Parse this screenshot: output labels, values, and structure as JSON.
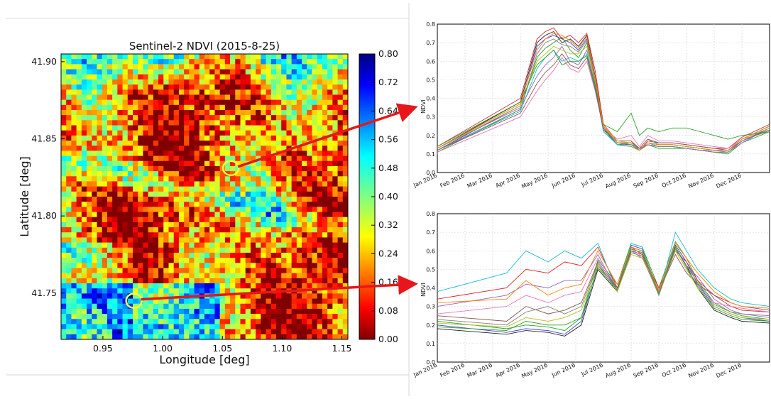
{
  "chart_data": [
    {
      "type": "heatmap",
      "title": "Sentinel-2 NDVI (2015-8-25)",
      "xlabel": "Longitude [deg]",
      "ylabel": "Latitude [deg]",
      "xlim": [
        0.915,
        1.155
      ],
      "ylim": [
        41.72,
        41.905
      ],
      "x_ticks": [
        "0.95",
        "1.00",
        "1.05",
        "1.10",
        "1.15"
      ],
      "x_tick_values": [
        0.95,
        1.0,
        1.05,
        1.1,
        1.15
      ],
      "y_ticks": [
        "41.75",
        "41.80",
        "41.85",
        "41.90"
      ],
      "y_tick_values": [
        41.75,
        41.8,
        41.85,
        41.9
      ],
      "colorbar": {
        "range": [
          0.0,
          0.8
        ],
        "ticks": [
          "0.00",
          "0.08",
          "0.16",
          "0.24",
          "0.32",
          "0.40",
          "0.48",
          "0.56",
          "0.64",
          "0.72",
          "0.80"
        ],
        "tick_values": [
          0.0,
          0.08,
          0.16,
          0.24,
          0.32,
          0.4,
          0.48,
          0.56,
          0.64,
          0.72,
          0.8
        ],
        "colormap": [
          "#800000",
          "#ff0000",
          "#ff8000",
          "#ffff00",
          "#80ff80",
          "#00ffff",
          "#0080ff",
          "#0000ff",
          "#000080"
        ]
      },
      "markers": [
        {
          "lon": 1.057,
          "lat": 41.831
        },
        {
          "lon": 0.976,
          "lat": 41.745
        }
      ]
    },
    {
      "type": "line",
      "xlabel": "",
      "ylabel": "NDVI",
      "ylim": [
        0.0,
        0.8
      ],
      "y_ticks": [
        "0.0",
        "0.1",
        "0.2",
        "0.3",
        "0.4",
        "0.5",
        "0.6",
        "0.7",
        "0.8"
      ],
      "x_ticks": [
        "Jan 2016",
        "Feb 2016",
        "Mar 2016",
        "Apr 2016",
        "May 2016",
        "Jun 2016",
        "Jul 2016",
        "Aug 2016",
        "Sep 2016",
        "Oct 2016",
        "Nov 2016",
        "Dec 2016"
      ],
      "x": [
        0,
        3,
        3.6,
        3.9,
        4.2,
        4.5,
        4.8,
        5.1,
        5.4,
        5.7,
        6.0,
        6.5,
        7.0,
        7.3,
        7.6,
        8.0,
        8.5,
        9.0,
        9.5,
        10.0,
        10.5,
        11.0,
        12.0
      ],
      "series": [
        {
          "values": [
            0.13,
            0.38,
            0.7,
            0.74,
            0.76,
            0.7,
            0.72,
            0.68,
            0.74,
            0.52,
            0.25,
            0.16,
            0.16,
            0.12,
            0.16,
            0.15,
            0.15,
            0.14,
            0.13,
            0.12,
            0.12,
            0.18,
            0.25
          ]
        },
        {
          "values": [
            0.12,
            0.36,
            0.68,
            0.72,
            0.74,
            0.72,
            0.7,
            0.66,
            0.72,
            0.5,
            0.24,
            0.15,
            0.15,
            0.13,
            0.15,
            0.14,
            0.14,
            0.13,
            0.12,
            0.11,
            0.11,
            0.17,
            0.24
          ]
        },
        {
          "values": [
            0.11,
            0.34,
            0.62,
            0.67,
            0.7,
            0.73,
            0.66,
            0.62,
            0.7,
            0.48,
            0.23,
            0.15,
            0.14,
            0.12,
            0.15,
            0.13,
            0.13,
            0.13,
            0.12,
            0.11,
            0.1,
            0.16,
            0.22
          ]
        },
        {
          "values": [
            0.14,
            0.4,
            0.72,
            0.76,
            0.78,
            0.72,
            0.74,
            0.7,
            0.75,
            0.55,
            0.26,
            0.17,
            0.17,
            0.12,
            0.17,
            0.16,
            0.16,
            0.15,
            0.14,
            0.13,
            0.13,
            0.19,
            0.26
          ]
        },
        {
          "values": [
            0.12,
            0.33,
            0.56,
            0.62,
            0.66,
            0.6,
            0.62,
            0.6,
            0.64,
            0.46,
            0.22,
            0.15,
            0.16,
            0.13,
            0.18,
            0.15,
            0.15,
            0.14,
            0.13,
            0.12,
            0.12,
            0.17,
            0.23
          ]
        },
        {
          "values": [
            0.13,
            0.35,
            0.52,
            0.58,
            0.62,
            0.68,
            0.6,
            0.58,
            0.66,
            0.47,
            0.24,
            0.16,
            0.15,
            0.12,
            0.16,
            0.14,
            0.14,
            0.13,
            0.12,
            0.12,
            0.11,
            0.16,
            0.24
          ]
        },
        {
          "values": [
            0.11,
            0.3,
            0.44,
            0.5,
            0.55,
            0.62,
            0.56,
            0.54,
            0.6,
            0.44,
            0.24,
            0.18,
            0.2,
            0.14,
            0.2,
            0.17,
            0.17,
            0.16,
            0.15,
            0.14,
            0.13,
            0.18,
            0.22
          ]
        },
        {
          "values": [
            0.12,
            0.32,
            0.48,
            0.54,
            0.58,
            0.64,
            0.58,
            0.56,
            0.62,
            0.45,
            0.23,
            0.17,
            0.17,
            0.13,
            0.18,
            0.16,
            0.16,
            0.15,
            0.14,
            0.13,
            0.12,
            0.17,
            0.23
          ]
        },
        {
          "values": [
            0.13,
            0.36,
            0.6,
            0.64,
            0.68,
            0.66,
            0.64,
            0.64,
            0.68,
            0.49,
            0.25,
            0.17,
            0.16,
            0.12,
            0.16,
            0.15,
            0.15,
            0.14,
            0.13,
            0.12,
            0.12,
            0.18,
            0.24
          ]
        },
        {
          "values": [
            0.12,
            0.34,
            0.64,
            0.7,
            0.72,
            0.69,
            0.68,
            0.65,
            0.71,
            0.5,
            0.24,
            0.16,
            0.15,
            0.12,
            0.15,
            0.14,
            0.14,
            0.13,
            0.12,
            0.11,
            0.11,
            0.17,
            0.23
          ]
        },
        {
          "values": [
            0.14,
            0.38,
            0.58,
            0.62,
            0.66,
            0.58,
            0.6,
            0.6,
            0.63,
            0.47,
            0.26,
            0.22,
            0.32,
            0.2,
            0.24,
            0.22,
            0.24,
            0.24,
            0.22,
            0.2,
            0.18,
            0.2,
            0.22
          ]
        },
        {
          "values": [
            0.13,
            0.37,
            0.66,
            0.72,
            0.75,
            0.74,
            0.71,
            0.67,
            0.73,
            0.51,
            0.25,
            0.16,
            0.16,
            0.12,
            0.16,
            0.15,
            0.15,
            0.14,
            0.13,
            0.12,
            0.12,
            0.18,
            0.25
          ]
        }
      ]
    },
    {
      "type": "line",
      "xlabel": "",
      "ylabel": "NDVI",
      "ylim": [
        0.0,
        0.8
      ],
      "y_ticks": [
        "0.0",
        "0.1",
        "0.2",
        "0.3",
        "0.4",
        "0.5",
        "0.6",
        "0.7",
        "0.8"
      ],
      "x_ticks": [
        "Jan 2016",
        "Feb 2016",
        "Mar 2016",
        "Apr 2016",
        "May 2016",
        "Jun 2016",
        "Jul 2016",
        "Aug 2016",
        "Sep 2016",
        "Oct 2016",
        "Nov 2016",
        "Dec 2016"
      ],
      "x": [
        0,
        2.5,
        3.2,
        4.0,
        4.6,
        5.2,
        5.8,
        6.5,
        7.0,
        7.4,
        8.0,
        8.6,
        9.0,
        9.4,
        10.0,
        10.6,
        11.0,
        12.0
      ],
      "series": [
        {
          "values": [
            0.18,
            0.15,
            0.17,
            0.16,
            0.14,
            0.2,
            0.5,
            0.38,
            0.62,
            0.6,
            0.37,
            0.62,
            0.52,
            0.4,
            0.28,
            0.24,
            0.22,
            0.21
          ]
        },
        {
          "values": [
            0.2,
            0.16,
            0.18,
            0.17,
            0.15,
            0.22,
            0.52,
            0.4,
            0.63,
            0.61,
            0.38,
            0.63,
            0.54,
            0.42,
            0.3,
            0.26,
            0.24,
            0.22
          ]
        },
        {
          "values": [
            0.22,
            0.18,
            0.2,
            0.19,
            0.17,
            0.24,
            0.55,
            0.42,
            0.64,
            0.62,
            0.4,
            0.65,
            0.56,
            0.44,
            0.32,
            0.27,
            0.25,
            0.23
          ]
        },
        {
          "values": [
            0.34,
            0.4,
            0.5,
            0.48,
            0.54,
            0.52,
            0.62,
            0.4,
            0.62,
            0.58,
            0.4,
            0.6,
            0.54,
            0.44,
            0.36,
            0.3,
            0.28,
            0.27
          ]
        },
        {
          "values": [
            0.38,
            0.48,
            0.6,
            0.54,
            0.6,
            0.56,
            0.64,
            0.38,
            0.64,
            0.62,
            0.36,
            0.7,
            0.6,
            0.5,
            0.4,
            0.34,
            0.32,
            0.3
          ]
        },
        {
          "values": [
            0.3,
            0.36,
            0.42,
            0.4,
            0.44,
            0.44,
            0.58,
            0.38,
            0.6,
            0.56,
            0.38,
            0.62,
            0.52,
            0.46,
            0.34,
            0.28,
            0.26,
            0.25
          ]
        },
        {
          "values": [
            0.26,
            0.3,
            0.36,
            0.32,
            0.36,
            0.38,
            0.56,
            0.4,
            0.61,
            0.57,
            0.39,
            0.6,
            0.5,
            0.42,
            0.32,
            0.3,
            0.29,
            0.27
          ]
        },
        {
          "values": [
            0.25,
            0.22,
            0.3,
            0.26,
            0.28,
            0.32,
            0.54,
            0.4,
            0.6,
            0.58,
            0.38,
            0.58,
            0.48,
            0.42,
            0.36,
            0.32,
            0.3,
            0.28
          ]
        },
        {
          "values": [
            0.21,
            0.19,
            0.24,
            0.22,
            0.24,
            0.28,
            0.52,
            0.38,
            0.58,
            0.56,
            0.37,
            0.6,
            0.5,
            0.4,
            0.3,
            0.26,
            0.24,
            0.23
          ]
        },
        {
          "values": [
            0.23,
            0.2,
            0.27,
            0.3,
            0.26,
            0.3,
            0.53,
            0.39,
            0.59,
            0.57,
            0.36,
            0.61,
            0.52,
            0.43,
            0.31,
            0.27,
            0.26,
            0.24
          ]
        },
        {
          "values": [
            0.19,
            0.17,
            0.22,
            0.2,
            0.2,
            0.24,
            0.51,
            0.39,
            0.61,
            0.59,
            0.37,
            0.62,
            0.51,
            0.41,
            0.29,
            0.25,
            0.23,
            0.22
          ]
        },
        {
          "values": [
            0.32,
            0.34,
            0.44,
            0.36,
            0.4,
            0.42,
            0.6,
            0.42,
            0.62,
            0.6,
            0.38,
            0.64,
            0.56,
            0.48,
            0.38,
            0.32,
            0.3,
            0.29
          ]
        }
      ]
    }
  ],
  "colors": {
    "arrow": "#e8161b",
    "marker": "#ffff33",
    "series": [
      "#1f1f1f",
      "#3b3bd6",
      "#26a626",
      "#d62728",
      "#17becf",
      "#9467bd",
      "#e377c2",
      "#8c564b",
      "#bcbd22",
      "#7f7f7f",
      "#2ca02c",
      "#ff7f0e"
    ]
  }
}
